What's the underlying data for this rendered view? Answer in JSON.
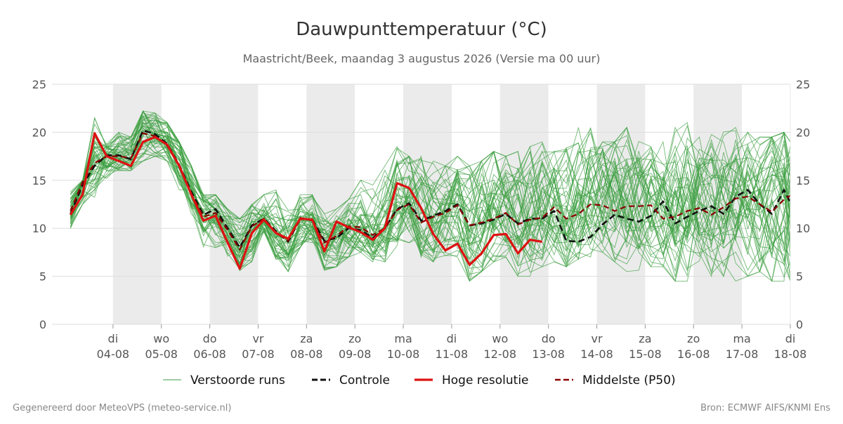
{
  "header": {
    "title": "Dauwpunttemperatuur (°C)",
    "subtitle": "Maastricht/Beek, maandag  3 augustus 2026 (Versie ma 00 uur)"
  },
  "footer": {
    "left": "Gegenereerd door MeteoVPS (meteo-service.nl)",
    "right": "Bron: ECMWF AIFS/KNMI Ens"
  },
  "colors": {
    "ensemble": "#3a9e3f",
    "control": "#111111",
    "high_res": "#dd1111",
    "median": "#8b0000",
    "weekend_band": "#ebebeb",
    "grid": "#dddddd",
    "title_text": "#333333",
    "subtitle_text": "#666666",
    "tick_text": "#555555",
    "footer_text": "#888888"
  },
  "chart_data": {
    "type": "line",
    "title": "Dauwpunttemperatuur (°C)",
    "subtitle": "Maastricht/Beek, maandag  3 augustus 2026 (Versie ma 00 uur)",
    "ylim": [
      0,
      25
    ],
    "yticks": [
      0,
      5,
      10,
      15,
      20,
      25
    ],
    "y_axis_both_sides": true,
    "grid": "horizontal",
    "legend_position": "bottom",
    "xlim_days": [
      3.0,
      18.0
    ],
    "x_unit": "day of August 2026",
    "day_ticks": [
      {
        "day": 4,
        "weekday": "di",
        "date": "04-08"
      },
      {
        "day": 5,
        "weekday": "wo",
        "date": "05-08"
      },
      {
        "day": 6,
        "weekday": "do",
        "date": "06-08"
      },
      {
        "day": 7,
        "weekday": "vr",
        "date": "07-08"
      },
      {
        "day": 8,
        "weekday": "za",
        "date": "08-08"
      },
      {
        "day": 9,
        "weekday": "zo",
        "date": "09-08"
      },
      {
        "day": 10,
        "weekday": "ma",
        "date": "10-08"
      },
      {
        "day": 11,
        "weekday": "di",
        "date": "11-08"
      },
      {
        "day": 12,
        "weekday": "wo",
        "date": "12-08"
      },
      {
        "day": 13,
        "weekday": "do",
        "date": "13-08"
      },
      {
        "day": 14,
        "weekday": "vr",
        "date": "14-08"
      },
      {
        "day": 15,
        "weekday": "za",
        "date": "15-08"
      },
      {
        "day": 16,
        "weekday": "zo",
        "date": "16-08"
      },
      {
        "day": 17,
        "weekday": "ma",
        "date": "17-08"
      },
      {
        "day": 18,
        "weekday": "di",
        "date": "18-08"
      }
    ],
    "shaded_days": [
      [
        4,
        5
      ],
      [
        6,
        7
      ],
      [
        8,
        9
      ],
      [
        10,
        11
      ],
      [
        12,
        13
      ],
      [
        14,
        15
      ],
      [
        16,
        17
      ]
    ],
    "legend": [
      {
        "key": "ensemble",
        "label": "Verstoorde runs",
        "style": "thin"
      },
      {
        "key": "control",
        "label": "Controle",
        "style": "dashed"
      },
      {
        "key": "high_res",
        "label": "Hoge resolutie",
        "style": "solid-thick"
      },
      {
        "key": "median",
        "label": "Middelste (P50)",
        "style": "dashed"
      }
    ],
    "series": [
      {
        "name": "Hoge resolutie",
        "key": "high_res",
        "x": [
          3.12,
          3.37,
          3.62,
          3.87,
          4.12,
          4.37,
          4.62,
          4.87,
          5.12,
          5.37,
          5.62,
          5.87,
          6.12,
          6.37,
          6.62,
          6.87,
          7.12,
          7.37,
          7.62,
          7.87,
          8.12,
          8.37,
          8.62,
          8.87,
          9.12,
          9.37,
          9.62,
          9.87,
          10.12,
          10.37,
          10.62,
          10.87,
          11.12,
          11.37,
          11.62,
          11.87,
          12.12,
          12.37,
          12.62,
          12.87
        ],
        "y": [
          11.4,
          13.5,
          19.9,
          17.5,
          17.0,
          16.5,
          19.0,
          19.5,
          18.7,
          16.5,
          13.5,
          10.8,
          11.3,
          8.5,
          5.8,
          9.5,
          10.9,
          9.5,
          8.9,
          11.0,
          10.9,
          7.6,
          10.7,
          10.1,
          9.6,
          8.8,
          10.0,
          14.7,
          14.2,
          12.1,
          9.4,
          7.7,
          8.4,
          6.2,
          7.4,
          9.3,
          9.4,
          7.4,
          8.8,
          8.6
        ]
      },
      {
        "name": "Controle",
        "key": "control",
        "x": [
          3.12,
          3.37,
          3.62,
          3.87,
          4.12,
          4.37,
          4.62,
          4.87,
          5.12,
          5.37,
          5.62,
          5.87,
          6.12,
          6.37,
          6.62,
          6.87,
          7.12,
          7.37,
          7.62,
          7.87,
          8.12,
          8.37,
          8.62,
          8.87,
          9.12,
          9.37,
          9.62,
          9.87,
          10.12,
          10.37,
          10.62,
          10.87,
          11.12,
          11.37,
          11.62,
          11.87,
          12.12,
          12.37,
          12.62,
          12.87,
          13.12,
          13.37,
          13.62,
          13.87,
          14.12,
          14.37,
          14.62,
          14.87,
          15.12,
          15.37,
          15.62,
          15.87,
          16.12,
          16.37,
          16.62,
          16.87,
          17.12,
          17.37,
          17.62,
          17.87,
          18.0
        ],
        "y": [
          11.5,
          14.5,
          16.5,
          17.6,
          17.6,
          17.2,
          20.2,
          19.8,
          18.8,
          16.6,
          13.8,
          11.4,
          12.0,
          10.0,
          8.0,
          10.3,
          11.0,
          9.7,
          8.6,
          11.0,
          10.9,
          8.7,
          9.0,
          10.0,
          9.8,
          9.0,
          10.0,
          12.0,
          12.6,
          10.8,
          11.3,
          11.8,
          12.5,
          10.3,
          10.5,
          10.9,
          11.5,
          10.5,
          11.0,
          11.0,
          11.8,
          8.7,
          8.6,
          9.1,
          10.4,
          11.4,
          11.0,
          10.7,
          11.3,
          12.8,
          10.5,
          11.2,
          11.8,
          12.3,
          11.5,
          13.3,
          14.0,
          12.5,
          11.5,
          14.0,
          12.7
        ]
      },
      {
        "name": "Middelste (P50)",
        "key": "median",
        "x": [
          3.12,
          3.37,
          3.62,
          3.87,
          4.12,
          4.37,
          4.62,
          4.87,
          5.12,
          5.37,
          5.62,
          5.87,
          6.12,
          6.37,
          6.62,
          6.87,
          7.12,
          7.37,
          7.62,
          7.87,
          8.12,
          8.37,
          8.62,
          8.87,
          9.12,
          9.37,
          9.62,
          9.87,
          10.12,
          10.37,
          10.62,
          10.87,
          11.12,
          11.37,
          11.62,
          11.87,
          12.12,
          12.37,
          12.62,
          12.87,
          13.12,
          13.37,
          13.62,
          13.87,
          14.12,
          14.37,
          14.62,
          14.87,
          15.12,
          15.37,
          15.62,
          15.87,
          16.12,
          16.37,
          16.62,
          16.87,
          17.12,
          17.37,
          17.62,
          17.87,
          18.0
        ],
        "y": [
          11.8,
          14.8,
          16.8,
          17.5,
          17.5,
          17.3,
          19.9,
          19.6,
          18.6,
          16.4,
          13.6,
          11.2,
          11.6,
          9.8,
          7.8,
          10.2,
          11.0,
          9.5,
          8.7,
          11.1,
          10.8,
          8.5,
          9.2,
          10.2,
          10.1,
          9.3,
          10.0,
          11.9,
          12.5,
          10.6,
          11.2,
          11.6,
          12.4,
          10.3,
          10.6,
          11.0,
          11.6,
          10.4,
          10.9,
          11.1,
          12.2,
          11.0,
          11.5,
          12.5,
          12.4,
          11.8,
          12.3,
          12.3,
          12.4,
          11.0,
          11.2,
          11.8,
          12.1,
          11.4,
          12.2,
          13.1,
          13.3,
          12.5,
          11.7,
          13.0,
          13.4
        ]
      }
    ],
    "ensemble": {
      "name": "Verstoorde runs",
      "member_count": 50,
      "x_start": 3.12,
      "x_end": 18.0,
      "x_step": 0.25,
      "envelope_low": [
        10.0,
        12.5,
        13.2,
        15.0,
        16.0,
        16.0,
        17.0,
        17.5,
        17.0,
        14.0,
        11.5,
        8.0,
        8.0,
        7.0,
        5.5,
        6.5,
        9.5,
        6.5,
        5.5,
        8.0,
        8.5,
        5.5,
        6.0,
        7.0,
        7.5,
        6.5,
        6.5,
        7.5,
        8.5,
        6.5,
        6.5,
        7.0,
        7.0,
        4.5,
        5.5,
        6.5,
        7.0,
        5.0,
        5.0,
        6.0,
        6.5,
        6.0,
        6.5,
        7.0,
        7.5,
        6.5,
        5.5,
        5.5,
        6.0,
        6.0,
        4.5,
        4.5,
        5.0,
        5.0,
        5.0,
        4.5,
        5.0,
        5.5,
        4.5,
        4.5,
        4.5
      ],
      "envelope_high": [
        13.8,
        15.0,
        21.5,
        19.0,
        20.0,
        19.5,
        22.2,
        22.0,
        21.0,
        19.0,
        16.5,
        13.5,
        13.5,
        12.0,
        11.0,
        12.5,
        13.5,
        14.0,
        12.0,
        13.5,
        13.5,
        11.5,
        12.0,
        13.0,
        15.0,
        14.5,
        16.5,
        18.5,
        17.5,
        17.5,
        17.0,
        16.5,
        17.5,
        16.5,
        17.0,
        18.0,
        17.5,
        18.0,
        18.5,
        19.0,
        18.0,
        18.5,
        20.5,
        20.5,
        19.0,
        19.0,
        20.5,
        19.5,
        18.5,
        19.0,
        20.5,
        21.0,
        19.5,
        20.0,
        20.5,
        20.5,
        20.0,
        19.5,
        19.5,
        20.0,
        19.0
      ]
    }
  }
}
